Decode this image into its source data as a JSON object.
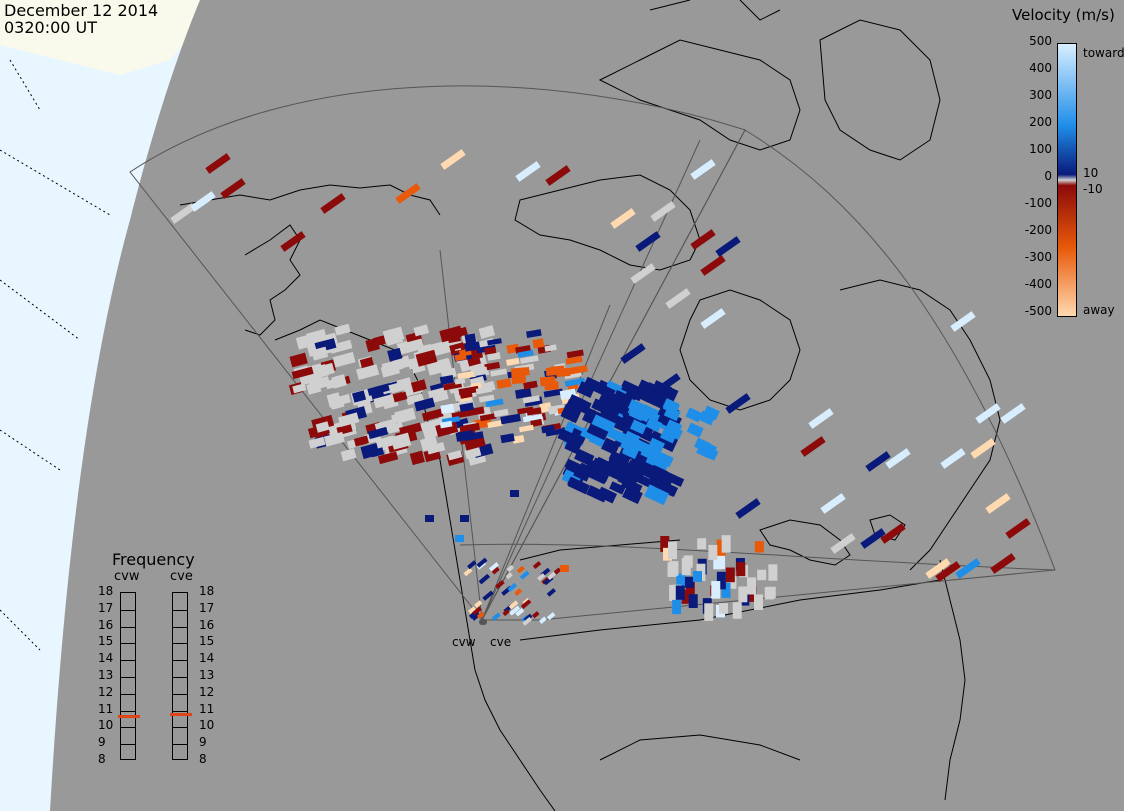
{
  "header": {
    "date": "December 12 2014",
    "time": "0320:00 UT"
  },
  "radars": [
    {
      "code": "cvw"
    },
    {
      "code": "cve"
    }
  ],
  "velocity_legend": {
    "title": "Velocity (m/s)",
    "toward_label": "toward",
    "away_label": "away",
    "ticks": [
      "500",
      "400",
      "300",
      "200",
      "100",
      "0",
      "-100",
      "-200",
      "-300",
      "-400",
      "-500"
    ],
    "small_pos": "10",
    "small_neg": "-10",
    "colors": {
      "toward_max": "#d8eeff",
      "toward_mid": "#1f8ee8",
      "toward_min": "#0a1a7a",
      "ground_scatter": "#d0d0d0",
      "away_min": "#8c0a0a",
      "away_mid": "#e85a0a",
      "away_max": "#ffd9b0"
    }
  },
  "frequency_legend": {
    "title": "Frequency",
    "unit_ticks": [
      "18",
      "17",
      "16",
      "15",
      "14",
      "13",
      "12",
      "11",
      "10",
      "9",
      "8"
    ],
    "values": [
      {
        "radar": "cvw",
        "mhz": 10.7
      },
      {
        "radar": "cve",
        "mhz": 10.8
      }
    ],
    "marker_color": "#e0441a"
  },
  "map_colors": {
    "background": "#999999",
    "ocean_outer": "#e8f6ff",
    "land_outer": "#fafaec",
    "coast_line": "#000000",
    "fov_line": "#555555"
  }
}
